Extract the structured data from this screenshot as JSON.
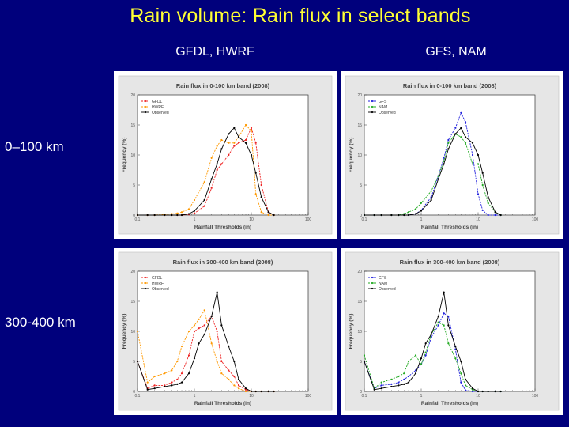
{
  "slide": {
    "title": "Rain volume: Rain flux in select bands",
    "col_left": "GFDL, HWRF",
    "col_right": "GFS, NAM",
    "row_top": "0–100 km",
    "row_bottom": "300-400 km"
  },
  "colors": {
    "background": "#00007c",
    "title": "#ffff33",
    "GFDL": "#ee2222",
    "HWRF": "#ff9900",
    "GFS": "#2222dd",
    "NAM": "#22aa22",
    "Observed": "#000000"
  },
  "chart_data": [
    {
      "type": "line",
      "title": "Rain flux in 0-100 km band (2008)",
      "xlabel": "Rainfall Thresholds (in)",
      "ylabel": "Frequency (%)",
      "xscale": "log",
      "xlim": [
        0.1,
        100
      ],
      "ylim": [
        0,
        20
      ],
      "xticks": [
        "0.1",
        "1",
        "10",
        "100"
      ],
      "yticks": [
        "0",
        "5",
        "10",
        "15",
        "20"
      ],
      "legend": "top-left",
      "x": [
        0.1,
        0.15,
        0.2,
        0.3,
        0.4,
        0.5,
        0.6,
        0.8,
        1,
        1.5,
        2,
        2.5,
        3,
        4,
        5,
        6,
        8,
        10,
        12,
        15,
        20,
        25
      ],
      "series": [
        {
          "name": "GFDL",
          "color": "#ee2222",
          "values": [
            0,
            0,
            0,
            0,
            0,
            0,
            0,
            0.1,
            0.3,
            1.5,
            4.5,
            7.5,
            8.5,
            10,
            11.5,
            12,
            12.5,
            14.5,
            12,
            5,
            0.5,
            0
          ]
        },
        {
          "name": "HWRF",
          "color": "#ff9900",
          "values": [
            0,
            0,
            0,
            0.1,
            0.2,
            0.3,
            0.5,
            1,
            2.5,
            5.5,
            9.5,
            11.5,
            12.5,
            12,
            12,
            13,
            15,
            14,
            3.5,
            0.5,
            0,
            0
          ]
        },
        {
          "name": "Observed",
          "color": "#000000",
          "values": [
            0,
            0,
            0,
            0,
            0,
            0,
            0,
            0.2,
            0.7,
            2.5,
            6,
            8.5,
            11,
            13.5,
            14.5,
            13,
            12,
            10,
            7,
            3,
            0.5,
            0
          ]
        }
      ]
    },
    {
      "type": "line",
      "title": "Rain flux in 0-100 km band (2008)",
      "xlabel": "Rainfall Thresholds (in)",
      "ylabel": "Frequency (%)",
      "xscale": "log",
      "xlim": [
        0.1,
        100
      ],
      "ylim": [
        0,
        20
      ],
      "xticks": [
        "0.1",
        "1",
        "10",
        "100"
      ],
      "yticks": [
        "0",
        "5",
        "10",
        "15",
        "20"
      ],
      "legend": "top-left",
      "x": [
        0.1,
        0.15,
        0.2,
        0.3,
        0.4,
        0.5,
        0.6,
        0.8,
        1,
        1.5,
        2,
        2.5,
        3,
        4,
        5,
        6,
        8,
        10,
        12,
        15,
        20,
        25
      ],
      "series": [
        {
          "name": "GFS",
          "color": "#2222dd",
          "values": [
            0,
            0,
            0,
            0,
            0,
            0,
            0,
            0.2,
            0.8,
            3,
            6.5,
            9.5,
            12.5,
            14.5,
            17,
            15.5,
            10,
            3.5,
            0.8,
            0,
            0,
            0
          ]
        },
        {
          "name": "NAM",
          "color": "#22aa22",
          "values": [
            0,
            0,
            0,
            0,
            0,
            0.2,
            0.5,
            1,
            2,
            4,
            6.5,
            9,
            12,
            13.5,
            13,
            12,
            8.5,
            8.5,
            5,
            2,
            0.5,
            0
          ]
        },
        {
          "name": "Observed",
          "color": "#000000",
          "values": [
            0,
            0,
            0,
            0,
            0,
            0,
            0,
            0.2,
            0.7,
            2.5,
            6,
            8.5,
            11,
            13.5,
            14.5,
            13,
            12,
            10,
            7,
            3,
            0.5,
            0
          ]
        }
      ]
    },
    {
      "type": "line",
      "title": "Rain flux in 300-400 km band (2008)",
      "xlabel": "Rainfall Thresholds (in)",
      "ylabel": "Frequency (%)",
      "xscale": "log",
      "xlim": [
        0.1,
        100
      ],
      "ylim": [
        0,
        20
      ],
      "xticks": [
        "0.1",
        "1",
        "10",
        "100"
      ],
      "yticks": [
        "0",
        "5",
        "10",
        "15",
        "20"
      ],
      "legend": "top-left",
      "x": [
        0.1,
        0.15,
        0.2,
        0.3,
        0.4,
        0.5,
        0.6,
        0.8,
        1,
        1.2,
        1.5,
        2,
        2.5,
        3,
        4,
        5,
        6,
        8,
        10,
        12,
        15,
        20,
        25
      ],
      "series": [
        {
          "name": "GFDL",
          "color": "#ee2222",
          "values": [
            5,
            0.5,
            1,
            1,
            1.5,
            2,
            3,
            6,
            10,
            10.5,
            11,
            12.5,
            10,
            5,
            3.5,
            2.5,
            1,
            0.3,
            0,
            0,
            0,
            0,
            0
          ]
        },
        {
          "name": "HWRF",
          "color": "#ff9900",
          "values": [
            10,
            1.5,
            2.5,
            3,
            3.5,
            5,
            7.5,
            10,
            11,
            12,
            13.5,
            8,
            5,
            3,
            2,
            1,
            0.5,
            0,
            0,
            0,
            0,
            0,
            0
          ]
        },
        {
          "name": "Observed",
          "color": "#000000",
          "values": [
            5,
            0.3,
            0.5,
            0.8,
            1,
            1.2,
            1.5,
            3,
            5.5,
            8,
            9.5,
            12.5,
            16.5,
            11,
            7.5,
            5,
            2,
            0.5,
            0,
            0,
            0,
            0,
            0
          ]
        }
      ]
    },
    {
      "type": "line",
      "title": "Rain flux in 300-400 km band (2008)",
      "xlabel": "Rainfall Thresholds (in)",
      "ylabel": "Frequency (%)",
      "xscale": "log",
      "xlim": [
        0.1,
        100
      ],
      "ylim": [
        0,
        20
      ],
      "xticks": [
        "0.1",
        "1",
        "10",
        "100"
      ],
      "yticks": [
        "0",
        "5",
        "10",
        "15",
        "20"
      ],
      "legend": "top-left",
      "x": [
        0.1,
        0.15,
        0.2,
        0.3,
        0.4,
        0.5,
        0.6,
        0.8,
        1,
        1.2,
        1.5,
        2,
        2.5,
        3,
        4,
        5,
        6,
        8,
        10,
        12,
        15,
        20,
        25
      ],
      "series": [
        {
          "name": "GFS",
          "color": "#2222dd",
          "values": [
            5,
            0.5,
            1,
            1.2,
            1.5,
            2,
            2.5,
            3.5,
            4.5,
            6,
            9,
            11,
            13,
            12.5,
            7,
            1.5,
            0.2,
            0,
            0,
            0,
            0,
            0,
            0
          ]
        },
        {
          "name": "NAM",
          "color": "#22aa22",
          "values": [
            6,
            0.5,
            1.5,
            2,
            2.5,
            3,
            5,
            6,
            4.5,
            6.5,
            9.5,
            11.5,
            11,
            8,
            5.5,
            3,
            1,
            0.3,
            0,
            0,
            0,
            0,
            0
          ]
        },
        {
          "name": "Observed",
          "color": "#000000",
          "values": [
            5,
            0.3,
            0.5,
            0.8,
            1,
            1.2,
            1.5,
            3,
            5.5,
            8,
            9.5,
            12.5,
            16.5,
            11,
            7.5,
            5,
            2,
            0.5,
            0,
            0,
            0,
            0,
            0
          ]
        }
      ]
    }
  ]
}
